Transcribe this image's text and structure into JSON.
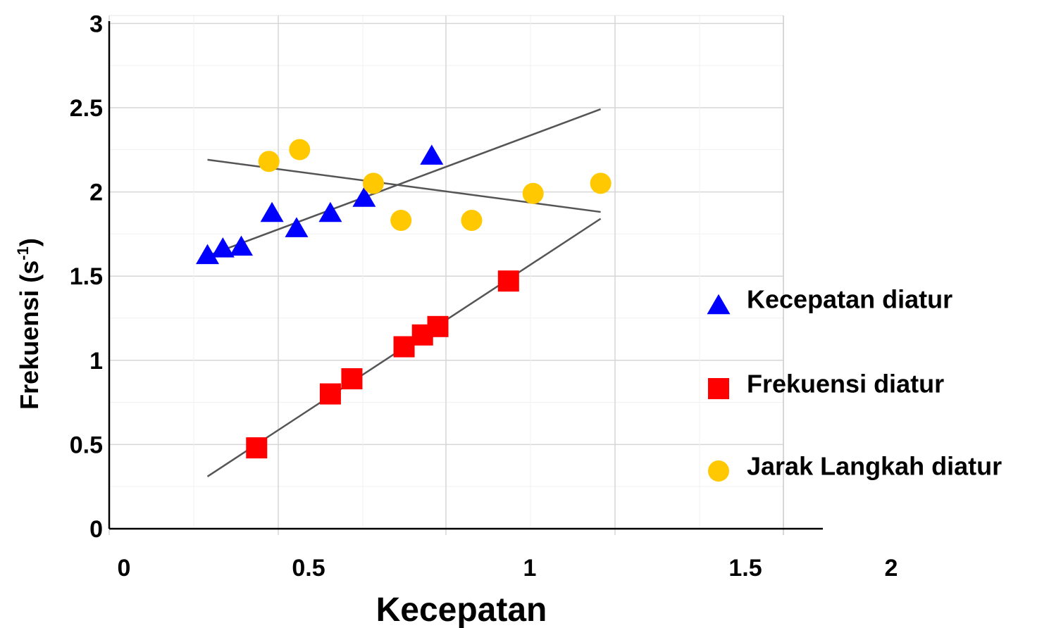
{
  "chart_data": {
    "type": "scatter",
    "title": "",
    "xlabel": "Kecepatan",
    "ylabel_main": "Frekuensi (s",
    "ylabel_sup": "-1",
    "ylabel_close": ")",
    "x_ticks": [
      "0",
      "0.5",
      "1",
      "1.5",
      "2"
    ],
    "y_ticks": [
      "0",
      "0.5",
      "1",
      "1.5",
      "2",
      "2.5",
      "3"
    ],
    "ylim": [
      0,
      3
    ],
    "grid": true,
    "legend_position": "right",
    "series": [
      {
        "name": "Kecepatan diatur",
        "marker": "triangle",
        "color": "#0000ff",
        "points": [
          [
            0.32,
            1.63
          ],
          [
            0.37,
            1.67
          ],
          [
            0.43,
            1.68
          ],
          [
            0.53,
            1.88
          ],
          [
            0.61,
            1.79
          ],
          [
            0.72,
            1.88
          ],
          [
            0.83,
            1.97
          ],
          [
            1.05,
            2.22
          ]
        ]
      },
      {
        "name": "Frekuensi diatur",
        "marker": "square",
        "color": "#ff0000",
        "points": [
          [
            0.48,
            0.48
          ],
          [
            0.72,
            0.8
          ],
          [
            0.79,
            0.89
          ],
          [
            0.96,
            1.08
          ],
          [
            1.02,
            1.15
          ],
          [
            1.07,
            1.2
          ],
          [
            1.3,
            1.47
          ]
        ]
      },
      {
        "name": "Jarak Langkah diatur",
        "marker": "circle",
        "color": "#ffc800",
        "points": [
          [
            0.52,
            2.18
          ],
          [
            0.62,
            2.25
          ],
          [
            0.86,
            2.05
          ],
          [
            0.95,
            1.83
          ],
          [
            1.18,
            1.83
          ],
          [
            1.38,
            1.99
          ],
          [
            1.6,
            2.05
          ]
        ]
      }
    ],
    "trendlines": [
      {
        "series": "Kecepatan diatur",
        "from": [
          0.32,
          1.62
        ],
        "to": [
          1.6,
          2.49
        ]
      },
      {
        "series": "Frekuensi diatur",
        "from": [
          0.32,
          0.31
        ],
        "to": [
          1.6,
          1.84
        ]
      },
      {
        "series": "Jarak Langkah diatur",
        "from": [
          0.32,
          2.19
        ],
        "to": [
          1.6,
          1.88
        ]
      }
    ]
  }
}
